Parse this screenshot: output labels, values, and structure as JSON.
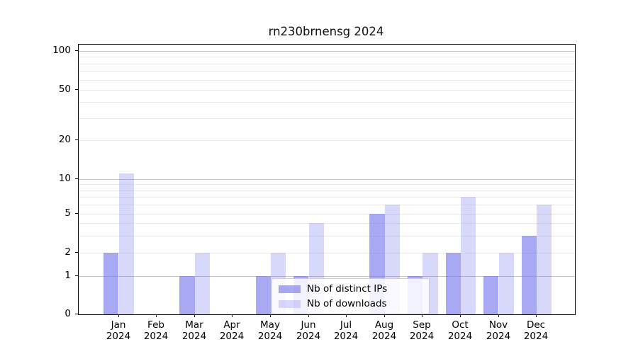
{
  "title": "rn230brnensg 2024",
  "colors": {
    "bar_fill_base": "121,121,237",
    "ips_bar_alpha": 0.64,
    "downloads_bar_alpha": 0.29,
    "grid_major": "#c2c2c2",
    "grid_minor": "#eaeaea",
    "axis": "#000000"
  },
  "legend": {
    "items": [
      {
        "label": "Nb of distinct IPs",
        "series": "ips"
      },
      {
        "label": "Nb of downloads",
        "series": "downloads"
      }
    ]
  },
  "y_axis": {
    "tick_labels": [
      "0",
      "1",
      "2",
      "5",
      "10",
      "20",
      "50",
      "100"
    ]
  },
  "x_axis": {
    "months": [
      "Jan",
      "Feb",
      "Mar",
      "Apr",
      "May",
      "Jun",
      "Jul",
      "Aug",
      "Sep",
      "Oct",
      "Nov",
      "Dec"
    ],
    "year": "2024"
  },
  "chart_data": {
    "type": "bar",
    "title": "rn230brnensg 2024",
    "categories": [
      "Jan 2024",
      "Feb 2024",
      "Mar 2024",
      "Apr 2024",
      "May 2024",
      "Jun 2024",
      "Jul 2024",
      "Aug 2024",
      "Sep 2024",
      "Oct 2024",
      "Nov 2024",
      "Dec 2024"
    ],
    "series": [
      {
        "name": "Nb of distinct IPs",
        "values": [
          2,
          0,
          1,
          0,
          1,
          1,
          0,
          5,
          1,
          2,
          1,
          3
        ]
      },
      {
        "name": "Nb of downloads",
        "values": [
          11,
          0,
          2,
          0,
          2,
          4,
          0,
          6,
          2,
          7,
          2,
          6
        ]
      }
    ],
    "xlabel": "",
    "ylabel": "",
    "yscale": "log",
    "yticks": [
      0,
      1,
      2,
      5,
      10,
      20,
      50,
      100
    ],
    "ylim": [
      0,
      120
    ],
    "grid": "on",
    "legend_position": "lower center inside plot"
  }
}
